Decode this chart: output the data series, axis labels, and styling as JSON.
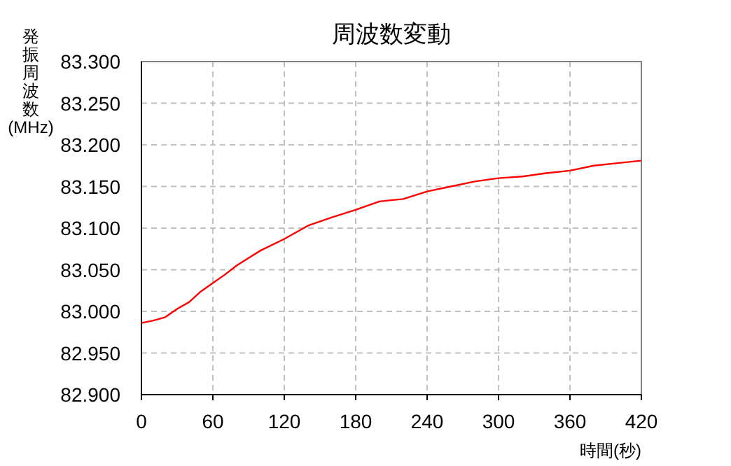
{
  "chart_data": {
    "type": "line",
    "title": "周波数変動",
    "xlabel": "時間(秒)",
    "ylabel": "発振周波数(MHz)",
    "x": [
      0,
      10,
      20,
      30,
      40,
      50,
      60,
      70,
      80,
      90,
      100,
      120,
      140,
      160,
      180,
      200,
      220,
      240,
      260,
      280,
      300,
      320,
      340,
      360,
      380,
      400,
      420
    ],
    "series": [
      {
        "color": "#ff0000",
        "values": [
          82.986,
          82.989,
          82.993,
          83.003,
          83.011,
          83.024,
          83.034,
          83.044,
          83.055,
          83.064,
          83.073,
          83.087,
          83.103,
          83.113,
          83.122,
          83.132,
          83.135,
          83.144,
          83.15,
          83.156,
          83.16,
          83.162,
          83.166,
          83.169,
          83.175,
          83.178,
          83.181
        ]
      }
    ],
    "xlim": [
      0,
      420
    ],
    "xticks": [
      0,
      60,
      120,
      180,
      240,
      300,
      360,
      420
    ],
    "ylim": [
      82.9,
      83.3
    ],
    "yticks": [
      {
        "value": 82.9,
        "label": "82.900"
      },
      {
        "value": 82.95,
        "label": "82.950"
      },
      {
        "value": 83.0,
        "label": "83.000"
      },
      {
        "value": 83.05,
        "label": "83.050"
      },
      {
        "value": 83.1,
        "label": "83.100"
      },
      {
        "value": 83.15,
        "label": "83.150"
      },
      {
        "value": 83.2,
        "label": "83.200"
      },
      {
        "value": 83.25,
        "label": "83.250"
      },
      {
        "value": 83.3,
        "label": "83.300"
      }
    ],
    "grid": true,
    "marker": "none",
    "line_style": "solid"
  }
}
